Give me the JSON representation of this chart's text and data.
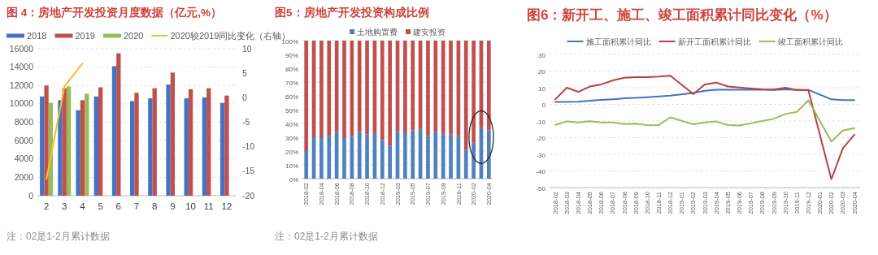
{
  "chart_data": [
    {
      "type": "bar",
      "title": "图 4：房地产开发投资月度数据（亿元,%）",
      "categories": [
        "2",
        "3",
        "4",
        "5",
        "6",
        "7",
        "8",
        "9",
        "10",
        "11",
        "12"
      ],
      "series": [
        {
          "name": "2018",
          "color": "#4472c4",
          "values": [
            10800,
            10400,
            9300,
            10800,
            14100,
            10300,
            10600,
            12100,
            10600,
            10700,
            10100
          ]
        },
        {
          "name": "2019",
          "color": "#c0504d",
          "values": [
            12000,
            11700,
            10400,
            11800,
            15500,
            11200,
            11700,
            13400,
            11600,
            11700,
            10900
          ]
        },
        {
          "name": "2020",
          "color": "#9bbb59",
          "values": [
            10100,
            11900,
            11100,
            null,
            null,
            null,
            null,
            null,
            null,
            null,
            null
          ]
        },
        {
          "name": "2020较2019同比变化（右轴）",
          "type": "line",
          "axis": "y2",
          "color": "#f5c02a",
          "values": [
            -16.6,
            2.3,
            7.0,
            null,
            null,
            null,
            null,
            null,
            null,
            null,
            null
          ]
        }
      ],
      "ylim": [
        0,
        16000
      ],
      "yticks": [
        0,
        2000,
        4000,
        6000,
        8000,
        10000,
        12000,
        14000,
        16000
      ],
      "y2lim": [
        -20,
        10
      ],
      "y2ticks": [
        -20,
        -15,
        -10,
        -5,
        0,
        5,
        10
      ],
      "grid": "y",
      "legend": "top",
      "annotations": [
        "注：02是1-2月累计数据"
      ]
    },
    {
      "type": "bar",
      "stacked": true,
      "title": "图5：房地产开发投资构成比例",
      "categories": [
        "2018-02",
        null,
        "2018-04",
        null,
        "2018-06",
        null,
        "2018-08",
        null,
        "2018-10",
        null,
        "2018-12",
        null,
        "2019-03",
        null,
        "2019-05",
        null,
        "2019-07",
        null,
        "2019-09",
        null,
        "2019-11",
        null,
        "2020-02",
        null,
        "2020-04"
      ],
      "series": [
        {
          "name": "土地购置费",
          "color": "#4f81bd",
          "values": [
            20,
            30,
            30,
            31,
            34,
            30,
            31,
            34,
            32,
            33,
            28,
            24,
            34,
            33,
            35,
            36,
            31,
            34,
            33,
            32,
            31,
            21,
            26,
            37,
            35
          ]
        },
        {
          "name": "建安投资",
          "color": "#c0504d",
          "values": [
            80,
            70,
            70,
            69,
            66,
            70,
            69,
            66,
            68,
            67,
            72,
            76,
            66,
            67,
            65,
            64,
            69,
            66,
            67,
            68,
            69,
            79,
            74,
            63,
            65
          ]
        }
      ],
      "ylim": [
        0,
        100
      ],
      "yticks": [
        {
          "value": 0,
          "label": "0%"
        },
        {
          "value": 10,
          "label": "10%"
        },
        {
          "value": 20,
          "label": "20%"
        },
        {
          "value": 30,
          "label": "30%"
        },
        {
          "value": 40,
          "label": "40%"
        },
        {
          "value": 50,
          "label": "50%"
        },
        {
          "value": 60,
          "label": "60%"
        },
        {
          "value": 70,
          "label": "70%"
        },
        {
          "value": 80,
          "label": "80%"
        },
        {
          "value": 90,
          "label": "90%"
        },
        {
          "value": 100,
          "label": "100%"
        }
      ],
      "grid": "y",
      "legend": "top",
      "annotations": [
        "注：02是1-2月累计数据"
      ]
    },
    {
      "type": "line",
      "title": "图6：新开工、施工、竣工面积累计同比变化（%）",
      "categories": [
        "2018-02",
        "2018-03",
        "2018-04",
        "2018-05",
        "2018-06",
        "2018-07",
        "2018-08",
        "2018-09",
        "2018-10",
        "2018-11",
        "2018-12",
        "2019-01",
        "2019-02",
        "2019-03",
        "2019-04",
        "2019-05",
        "2019-06",
        "2019-07",
        "2019-08",
        "2019-09",
        "2019-10",
        "2019-11",
        "2019-12",
        "2020-01",
        "2020-02",
        "2020-03",
        "2020-04"
      ],
      "series": [
        {
          "name": "施工面积累计同比",
          "color": "#4472c4",
          "values": [
            1.5,
            1.5,
            1.6,
            2.2,
            2.7,
            3.1,
            3.6,
            3.9,
            4.3,
            4.7,
            5.2,
            null,
            6.8,
            8.2,
            8.8,
            8.8,
            8.8,
            8.9,
            8.8,
            8.7,
            9.0,
            8.7,
            8.7,
            null,
            3.0,
            2.6,
            2.6
          ]
        },
        {
          "name": "新开工面积累计同比",
          "color": "#b9413e",
          "values": [
            3,
            10,
            7.5,
            10.7,
            12,
            14.4,
            16,
            16.4,
            16.4,
            16.7,
            17.2,
            null,
            6.2,
            12,
            13.1,
            10.7,
            10.1,
            9.5,
            9.0,
            8.9,
            10,
            8.6,
            8.5,
            null,
            -45,
            -26.4,
            -18.2
          ]
        },
        {
          "name": "竣工面积累计同比",
          "color": "#9bbb59",
          "values": [
            -12.3,
            -10.2,
            -10.8,
            -10.1,
            -10.8,
            -10.9,
            -11.8,
            -11.6,
            -12.5,
            -12.4,
            -7.8,
            null,
            -12,
            -10.8,
            -10.3,
            -12.4,
            -12.7,
            -11.4,
            -10,
            -8.6,
            -5.8,
            -4.5,
            2.4,
            null,
            -22.3,
            -15.7,
            -14.3
          ]
        }
      ],
      "ylim": [
        -50,
        30
      ],
      "yticks": [
        -50,
        -40,
        -30,
        -20,
        -10,
        0,
        10,
        20,
        30
      ],
      "grid": "y",
      "legend": "top"
    }
  ]
}
